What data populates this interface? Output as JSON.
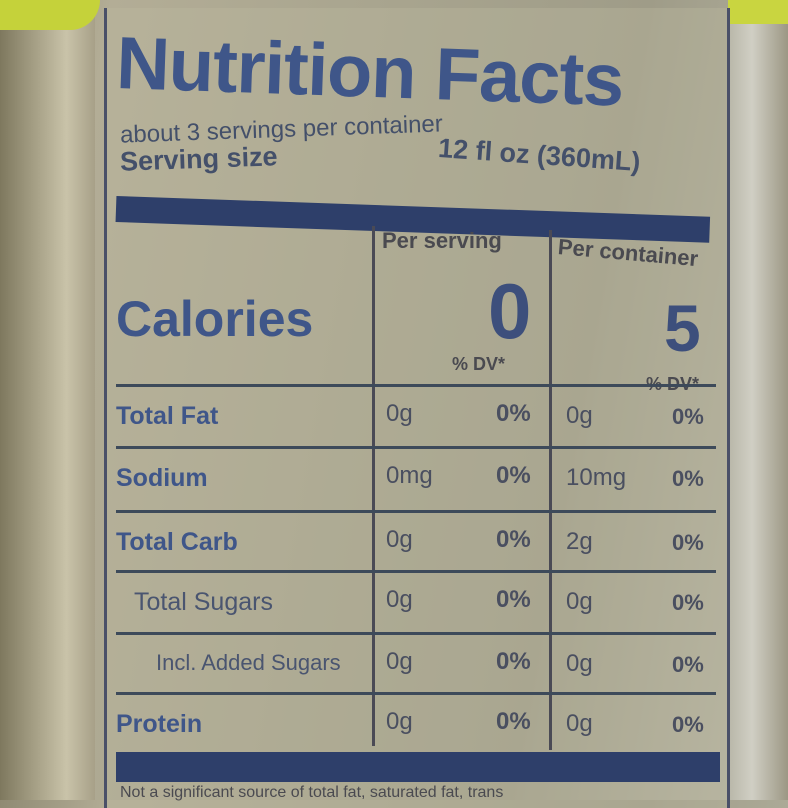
{
  "label": {
    "title": "Nutrition Facts",
    "servings": "about 3 servings per container",
    "serving_size_label": "Serving size",
    "serving_size_value": "12 fl oz (360mL)",
    "col_per_serving": "Per serving",
    "col_per_container": "Per container",
    "calories_label": "Calories",
    "calories_per_serving": "0",
    "calories_per_container": "5",
    "dv_header_serving": "% DV*",
    "dv_header_container": "% DV*",
    "rows": [
      {
        "name": "Total Fat",
        "serving_amount": "0g",
        "serving_dv": "0%",
        "container_amount": "0g",
        "container_dv": "0%"
      },
      {
        "name": "Sodium",
        "serving_amount": "0mg",
        "serving_dv": "0%",
        "container_amount": "10mg",
        "container_dv": "0%"
      },
      {
        "name": "Total Carb",
        "serving_amount": "0g",
        "serving_dv": "0%",
        "container_amount": "2g",
        "container_dv": "0%"
      },
      {
        "name": "Total Sugars",
        "serving_amount": "0g",
        "serving_dv": "0%",
        "container_amount": "0g",
        "container_dv": "0%"
      },
      {
        "name": "Incl. Added Sugars",
        "serving_amount": "0g",
        "serving_dv": "0%",
        "container_amount": "0g",
        "container_dv": "0%"
      },
      {
        "name": "Protein",
        "serving_amount": "0g",
        "serving_dv": "0%",
        "container_amount": "0g",
        "container_dv": "0%"
      }
    ],
    "footnote": "Not a significant source of total fat, saturated fat, trans"
  },
  "colors": {
    "label_text": "#3f5689",
    "bar": "#2e3f6a",
    "cap": "#c5d23a"
  }
}
